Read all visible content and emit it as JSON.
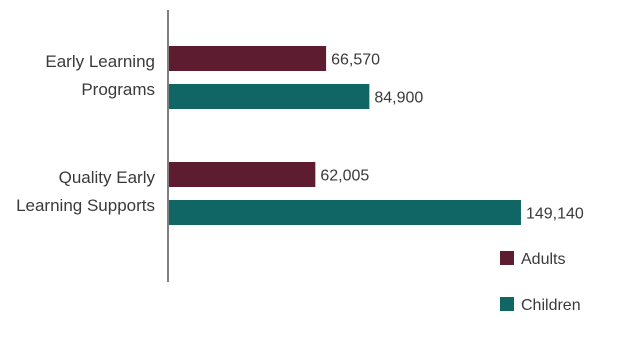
{
  "chart_data": {
    "type": "bar",
    "orientation": "horizontal",
    "categories": [
      [
        "Early Learning",
        "Programs"
      ],
      [
        "Quality Early",
        "Learning Supports"
      ]
    ],
    "series": [
      {
        "name": "Adults",
        "color": "#5e1c30",
        "values": [
          66570,
          62005
        ],
        "labels": [
          "66,570",
          "62,005"
        ]
      },
      {
        "name": "Children",
        "color": "#0f6664",
        "values": [
          84900,
          149140
        ],
        "labels": [
          "84,900",
          "149,140"
        ]
      }
    ],
    "xlim": [
      0,
      150000
    ],
    "grid": false,
    "legend_position": "bottom-right"
  }
}
